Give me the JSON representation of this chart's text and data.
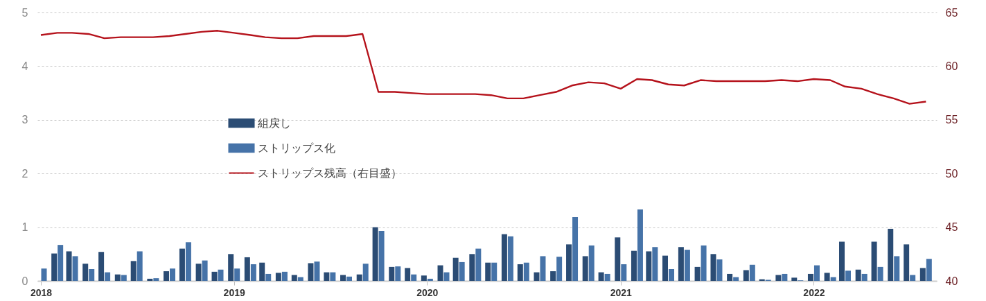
{
  "chart_data": {
    "type": "bar",
    "x": [
      "2018-01",
      "2018-02",
      "2018-03",
      "2018-04",
      "2018-05",
      "2018-06",
      "2018-07",
      "2018-08",
      "2018-09",
      "2018-10",
      "2018-11",
      "2018-12",
      "2019-01",
      "2019-02",
      "2019-03",
      "2019-04",
      "2019-05",
      "2019-06",
      "2019-07",
      "2019-08",
      "2019-09",
      "2019-10",
      "2019-11",
      "2019-12",
      "2020-01",
      "2020-02",
      "2020-03",
      "2020-04",
      "2020-05",
      "2020-06",
      "2020-07",
      "2020-08",
      "2020-09",
      "2020-10",
      "2020-11",
      "2020-12",
      "2021-01",
      "2021-02",
      "2021-03",
      "2021-04",
      "2021-05",
      "2021-06",
      "2021-07",
      "2021-08",
      "2021-09",
      "2021-10",
      "2021-11",
      "2021-12",
      "2022-01",
      "2022-02",
      "2022-03",
      "2022-04",
      "2022-05",
      "2022-06",
      "2022-07",
      "2022-08"
    ],
    "series": [
      {
        "name": "組戻し",
        "type": "bar",
        "color": "#2b4c74",
        "values": [
          0,
          0.51,
          0.55,
          0.32,
          0.54,
          0.12,
          0.37,
          0.04,
          0.18,
          0.6,
          0.32,
          0.17,
          0.5,
          0.44,
          0.34,
          0.15,
          0.11,
          0.33,
          0.16,
          0.11,
          0.12,
          1.0,
          0.26,
          0.24,
          0.1,
          0.29,
          0.43,
          0.5,
          0.34,
          0.87,
          0.31,
          0.16,
          0.18,
          0.68,
          0.46,
          0.16,
          0.81,
          0.56,
          0.55,
          0.47,
          0.63,
          0.26,
          0.5,
          0.13,
          0.2,
          0.03,
          0.11,
          0.06,
          0.13,
          0.15,
          0.73,
          0.21,
          0.73,
          0.97,
          0.68,
          0.24
        ]
      },
      {
        "name": "ストリップス化",
        "type": "bar",
        "color": "#4673a8",
        "values": [
          0.23,
          0.67,
          0.46,
          0.22,
          0.16,
          0.11,
          0.55,
          0.05,
          0.23,
          0.72,
          0.38,
          0.21,
          0.23,
          0.31,
          0.13,
          0.17,
          0.07,
          0.36,
          0.16,
          0.08,
          0.32,
          0.93,
          0.27,
          0.12,
          0.04,
          0.16,
          0.35,
          0.6,
          0.34,
          0.83,
          0.34,
          0.46,
          0.45,
          1.19,
          0.66,
          0.13,
          0.31,
          1.33,
          0.63,
          0.22,
          0.58,
          0.66,
          0.4,
          0.07,
          0.3,
          0.02,
          0.13,
          0.01,
          0.29,
          0.07,
          0.19,
          0.13,
          0.26,
          0.46,
          0.11,
          0.41
        ]
      },
      {
        "name": "ストリップス残高（右目盛）",
        "type": "line",
        "axis": "y2",
        "color": "#b5121b",
        "values": [
          62.9,
          63.1,
          63.1,
          63.0,
          62.6,
          62.7,
          62.7,
          62.7,
          62.8,
          63.0,
          63.2,
          63.3,
          63.1,
          62.9,
          62.7,
          62.6,
          62.6,
          62.8,
          62.8,
          62.8,
          63.0,
          57.6,
          57.6,
          57.5,
          57.4,
          57.4,
          57.4,
          57.4,
          57.3,
          57.0,
          57.0,
          57.3,
          57.6,
          58.2,
          58.5,
          58.4,
          57.9,
          58.8,
          58.7,
          58.3,
          58.2,
          58.7,
          58.6,
          58.6,
          58.6,
          58.6,
          58.7,
          58.6,
          58.8,
          58.7,
          58.1,
          57.9,
          57.4,
          57.0,
          56.5,
          56.7
        ]
      }
    ],
    "xticks": [
      {
        "value": "2018-01",
        "label": "2018"
      },
      {
        "value": "2019-01",
        "label": "2019"
      },
      {
        "value": "2020-01",
        "label": "2020"
      },
      {
        "value": "2021-01",
        "label": "2021"
      },
      {
        "value": "2022-01",
        "label": "2022"
      }
    ],
    "xlim": [
      "2018-01-01",
      "2022-08-15"
    ],
    "ylim": [
      0,
      5
    ],
    "yticks": [
      0,
      1,
      2,
      3,
      4,
      5
    ],
    "y2lim": [
      40,
      65
    ],
    "y2ticks": [
      40,
      45,
      50,
      55,
      60,
      65
    ],
    "grid": "y",
    "legend": "center",
    "line_style": "solid"
  }
}
